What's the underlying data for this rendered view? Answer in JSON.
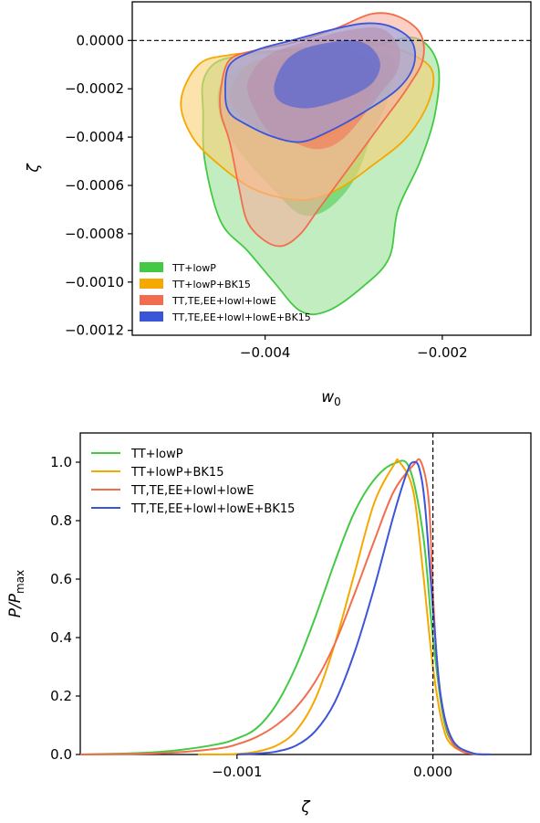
{
  "chart_data": [
    {
      "type": "contour",
      "xlabel": "w_0",
      "ylabel": "ζ",
      "xlim": [
        -0.0055,
        -0.001
      ],
      "ylim": [
        -0.00122,
        0.00016
      ],
      "x_ticks": [
        -0.004,
        -0.002
      ],
      "x_tick_labels": [
        "−0.004",
        "−0.002"
      ],
      "y_ticks": [
        0.0,
        -0.0002,
        -0.0004,
        -0.0006,
        -0.0008,
        -0.001,
        -0.0012
      ],
      "y_tick_labels": [
        "0.0000",
        "−0.0002",
        "−0.0004",
        "−0.0006",
        "−0.0008",
        "−0.0010",
        "−0.0012"
      ],
      "reference_line": {
        "y": 0.0,
        "style": "dashed"
      },
      "legend_position": "bottom-left",
      "series": [
        {
          "name": "TT+lowP",
          "color": "#44c944",
          "outer": [
            [
              -0.0047,
              -0.00017
            ],
            [
              -0.00455,
              -9e-05
            ],
            [
              -0.0042,
              -6e-05
            ],
            [
              -0.0036,
              -4e-05
            ],
            [
              -0.0028,
              -2e-05
            ],
            [
              -0.0023,
              1e-05
            ],
            [
              -0.00205,
              -0.0001
            ],
            [
              -0.00208,
              -0.0003
            ],
            [
              -0.00225,
              -0.0005
            ],
            [
              -0.0025,
              -0.0007
            ],
            [
              -0.0026,
              -0.0009
            ],
            [
              -0.0029,
              -0.00102
            ],
            [
              -0.0033,
              -0.00112
            ],
            [
              -0.0036,
              -0.00112
            ],
            [
              -0.0039,
              -0.001
            ],
            [
              -0.0042,
              -0.00087
            ],
            [
              -0.0045,
              -0.00075
            ],
            [
              -0.00468,
              -0.0005
            ],
            [
              -0.0047,
              -0.0003
            ]
          ],
          "inner": [
            [
              -0.0045,
              -0.00018
            ],
            [
              -0.0042,
              -0.0001
            ],
            [
              -0.0036,
              -7e-05
            ],
            [
              -0.0029,
              -4e-05
            ],
            [
              -0.00255,
              -8e-05
            ],
            [
              -0.00262,
              -0.00025
            ],
            [
              -0.0028,
              -0.0004
            ],
            [
              -0.003,
              -0.00058
            ],
            [
              -0.0033,
              -0.0007
            ],
            [
              -0.0036,
              -0.00072
            ],
            [
              -0.0039,
              -0.00062
            ],
            [
              -0.0042,
              -0.0005
            ],
            [
              -0.0044,
              -0.0004
            ],
            [
              -0.00452,
              -0.0003
            ]
          ]
        },
        {
          "name": "TT+lowP+BK15",
          "color": "#f5a800",
          "outer": [
            [
              -0.00495,
              -0.00025
            ],
            [
              -0.00475,
              -0.0001
            ],
            [
              -0.0044,
              -6e-05
            ],
            [
              -0.0038,
              -4e-05
            ],
            [
              -0.0032,
              -2e-05
            ],
            [
              -0.0028,
              -1e-05
            ],
            [
              -0.0024,
              -5e-05
            ],
            [
              -0.00212,
              -0.00012
            ],
            [
              -0.00215,
              -0.00025
            ],
            [
              -0.0024,
              -0.0004
            ],
            [
              -0.0028,
              -0.00052
            ],
            [
              -0.0032,
              -0.00062
            ],
            [
              -0.0036,
              -0.00066
            ],
            [
              -0.0041,
              -0.00062
            ],
            [
              -0.0045,
              -0.00052
            ],
            [
              -0.00482,
              -0.0004
            ]
          ],
          "inner": [
            [
              -0.0044,
              -0.00022
            ],
            [
              -0.0042,
              -0.0001
            ],
            [
              -0.0038,
              -6e-05
            ],
            [
              -0.0033,
              -4e-05
            ],
            [
              -0.0029,
              -6e-05
            ],
            [
              -0.00275,
              -0.00015
            ],
            [
              -0.0029,
              -0.00028
            ],
            [
              -0.0032,
              -0.00038
            ],
            [
              -0.0036,
              -0.00042
            ],
            [
              -0.004,
              -0.00038
            ],
            [
              -0.0043,
              -0.0003
            ]
          ]
        },
        {
          "name": "TT,TE,EE+lowl+lowE",
          "color": "#f26d4d",
          "outer": [
            [
              -0.0045,
              -0.0002
            ],
            [
              -0.0044,
              -8e-05
            ],
            [
              -0.0041,
              -4e-05
            ],
            [
              -0.0037,
              -1e-05
            ],
            [
              -0.0032,
              5e-05
            ],
            [
              -0.0028,
              0.00011
            ],
            [
              -0.0025,
              0.0001
            ],
            [
              -0.00225,
              3e-05
            ],
            [
              -0.00222,
              -8e-05
            ],
            [
              -0.0024,
              -0.0002
            ],
            [
              -0.0027,
              -0.00035
            ],
            [
              -0.0031,
              -0.00055
            ],
            [
              -0.0034,
              -0.0007
            ],
            [
              -0.0036,
              -0.0008
            ],
            [
              -0.0038,
              -0.00085
            ],
            [
              -0.004,
              -0.00083
            ],
            [
              -0.0042,
              -0.00075
            ],
            [
              -0.0043,
              -0.0006
            ],
            [
              -0.0044,
              -0.00042
            ],
            [
              -0.0045,
              -0.0003
            ]
          ],
          "inner": [
            [
              -0.0042,
              -0.00018
            ],
            [
              -0.004,
              -7e-05
            ],
            [
              -0.0036,
              -1e-05
            ],
            [
              -0.0031,
              4e-05
            ],
            [
              -0.0027,
              5e-05
            ],
            [
              -0.0025,
              -2e-05
            ],
            [
              -0.0025,
              -0.00012
            ],
            [
              -0.0027,
              -0.00022
            ],
            [
              -0.0031,
              -0.0004
            ],
            [
              -0.0034,
              -0.00045
            ],
            [
              -0.0037,
              -0.00042
            ],
            [
              -0.0039,
              -0.0004
            ],
            [
              -0.0041,
              -0.0003
            ]
          ]
        },
        {
          "name": "TT,TE,EE+lowl+lowE+BK15",
          "color": "#3b55d9",
          "outer": [
            [
              -0.00445,
              -0.00022
            ],
            [
              -0.0044,
              -0.0001
            ],
            [
              -0.0041,
              -4e-05
            ],
            [
              -0.0037,
              0.0
            ],
            [
              -0.0033,
              4e-05
            ],
            [
              -0.0029,
              7e-05
            ],
            [
              -0.0026,
              6e-05
            ],
            [
              -0.00235,
              0.0
            ],
            [
              -0.00232,
              -0.0001
            ],
            [
              -0.0025,
              -0.0002
            ],
            [
              -0.0029,
              -0.0003
            ],
            [
              -0.0033,
              -0.00038
            ],
            [
              -0.0036,
              -0.00042
            ],
            [
              -0.0039,
              -0.0004
            ],
            [
              -0.0042,
              -0.00035
            ],
            [
              -0.0044,
              -0.0003
            ]
          ],
          "inner": [
            [
              -0.0039,
              -0.0002
            ],
            [
              -0.0038,
              -0.0001
            ],
            [
              -0.0036,
              -4e-05
            ],
            [
              -0.0033,
              -1e-05
            ],
            [
              -0.003,
              0.0
            ],
            [
              -0.0028,
              -3e-05
            ],
            [
              -0.0027,
              -0.0001
            ],
            [
              -0.0028,
              -0.00018
            ],
            [
              -0.0031,
              -0.00024
            ],
            [
              -0.0035,
              -0.00028
            ],
            [
              -0.0038,
              -0.00026
            ]
          ]
        }
      ]
    },
    {
      "type": "line",
      "xlabel": "ζ",
      "ylabel": "P/P_max",
      "xlim": [
        -0.0018,
        0.0005
      ],
      "ylim": [
        0.0,
        1.1
      ],
      "x_ticks": [
        -0.001,
        0.0
      ],
      "x_tick_labels": [
        "−0.001",
        "0.000"
      ],
      "y_ticks": [
        0.0,
        0.2,
        0.4,
        0.6,
        0.8,
        1.0
      ],
      "y_tick_labels": [
        "0.0",
        "0.2",
        "0.4",
        "0.6",
        "0.8",
        "1.0"
      ],
      "reference_line": {
        "x": 0.0,
        "style": "dashed"
      },
      "legend_position": "top-left",
      "series": [
        {
          "name": "TT+lowP",
          "color": "#44c944",
          "x": [
            -0.0018,
            -0.0015,
            -0.0013,
            -0.0011,
            -0.001,
            -0.0009,
            -0.0008,
            -0.0007,
            -0.0006,
            -0.0005,
            -0.0004,
            -0.0003,
            -0.0002,
            -0.00012,
            -5e-05,
            0.0,
            5e-05,
            0.0001,
            0.0002,
            0.0003
          ],
          "values": [
            0.0,
            0.005,
            0.015,
            0.035,
            0.055,
            0.09,
            0.17,
            0.3,
            0.47,
            0.66,
            0.83,
            0.94,
            0.995,
            0.98,
            0.75,
            0.4,
            0.14,
            0.04,
            0.005,
            0.0
          ]
        },
        {
          "name": "TT+lowP+BK15",
          "color": "#f5a800",
          "x": [
            -0.0012,
            -0.001,
            -0.0009,
            -0.0008,
            -0.0007,
            -0.0006,
            -0.0005,
            -0.0004,
            -0.0003,
            -0.0002,
            -0.00017,
            -0.0001,
            -5e-05,
            0.0,
            5e-05,
            0.0001,
            0.0002,
            0.0003
          ],
          "values": [
            0.0,
            0.002,
            0.01,
            0.03,
            0.08,
            0.19,
            0.38,
            0.62,
            0.86,
            0.99,
            1.0,
            0.9,
            0.62,
            0.3,
            0.1,
            0.03,
            0.003,
            0.0
          ]
        },
        {
          "name": "TT,TE,EE+lowl+lowE",
          "color": "#f26d4d",
          "x": [
            -0.0018,
            -0.0014,
            -0.0011,
            -0.001,
            -0.0009,
            -0.0008,
            -0.0007,
            -0.0006,
            -0.0005,
            -0.0004,
            -0.0003,
            -0.0002,
            -0.0001,
            -6e-05,
            -2e-05,
            0.0,
            3e-05,
            8e-05,
            0.00015,
            0.0003
          ],
          "values": [
            0.0,
            0.004,
            0.02,
            0.035,
            0.06,
            0.1,
            0.16,
            0.25,
            0.38,
            0.55,
            0.73,
            0.9,
            0.99,
            1.0,
            0.86,
            0.55,
            0.25,
            0.07,
            0.01,
            0.0
          ]
        },
        {
          "name": "TT,TE,EE+lowl+lowE+BK15",
          "color": "#3b55d9",
          "x": [
            -0.001,
            -0.0009,
            -0.0008,
            -0.0007,
            -0.0006,
            -0.0005,
            -0.0004,
            -0.0003,
            -0.0002,
            -0.00013,
            -0.0001,
            -7e-05,
            -4e-05,
            0.0,
            4e-05,
            0.0001,
            0.0002,
            0.0003
          ],
          "values": [
            0.0,
            0.003,
            0.01,
            0.03,
            0.08,
            0.18,
            0.35,
            0.57,
            0.82,
            0.97,
            1.0,
            0.98,
            0.85,
            0.5,
            0.2,
            0.05,
            0.005,
            0.0
          ]
        }
      ]
    }
  ]
}
